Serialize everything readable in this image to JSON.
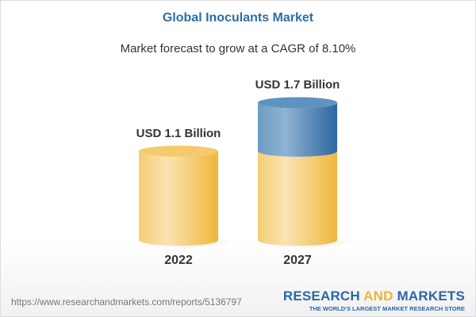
{
  "title": "Global Inoculants Market",
  "subtitle": "Market forecast to grow at a CAGR of 8.10%",
  "chart_data": {
    "type": "bar",
    "style": "3d-cylinder",
    "categories": [
      "2022",
      "2027"
    ],
    "values": [
      1.1,
      1.7
    ],
    "data_labels": [
      "USD 1.1 Billion",
      "USD 1.7 Billion"
    ],
    "unit": "USD Billion",
    "colors": {
      "base": "#f2c35a",
      "growth": "#3f7cb0"
    }
  },
  "footer": {
    "url": "https://www.researchandmarkets.com/reports/5136797",
    "logo_part1": "RESEARCH ",
    "logo_part2": "AND",
    "logo_part3": " MARKETS",
    "tagline": "THE WORLD'S LARGEST MARKET RESEARCH STORE"
  }
}
